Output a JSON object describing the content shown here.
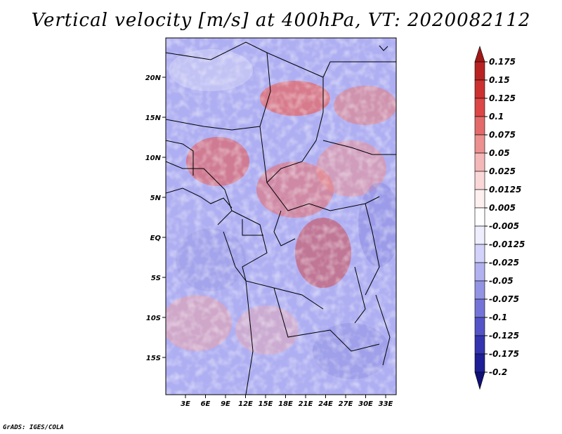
{
  "title": "Vertical velocity [m/s] at 400hPa, VT: 2020082112",
  "footer": "GrADS: IGES/COLA",
  "map": {
    "lat_labels": [
      "20N",
      "15N",
      "10N",
      "5N",
      "EQ",
      "5S",
      "10S",
      "15S"
    ],
    "lon_labels": [
      "3E",
      "6E",
      "9E",
      "12E",
      "15E",
      "18E",
      "21E",
      "24E",
      "27E",
      "30E",
      "33E"
    ]
  },
  "colorbar": {
    "labels": [
      "0.175",
      "0.15",
      "0.125",
      "0.1",
      "0.075",
      "0.05",
      "0.025",
      "0.0125",
      "0.005",
      "-0.005",
      "-0.0125",
      "-0.025",
      "-0.05",
      "-0.075",
      "-0.1",
      "-0.125",
      "-0.175",
      "-0.2"
    ],
    "colors": [
      "#a01818",
      "#b82222",
      "#cc3030",
      "#dc4646",
      "#e46a6a",
      "#ec9090",
      "#f4b8b8",
      "#fad8d8",
      "#fff0f0",
      "#ffffff",
      "#eeeeff",
      "#d2d2fa",
      "#b2b2f0",
      "#9494e4",
      "#7474d8",
      "#5454c8",
      "#3434b0",
      "#1e1e96",
      "#101078"
    ]
  }
}
